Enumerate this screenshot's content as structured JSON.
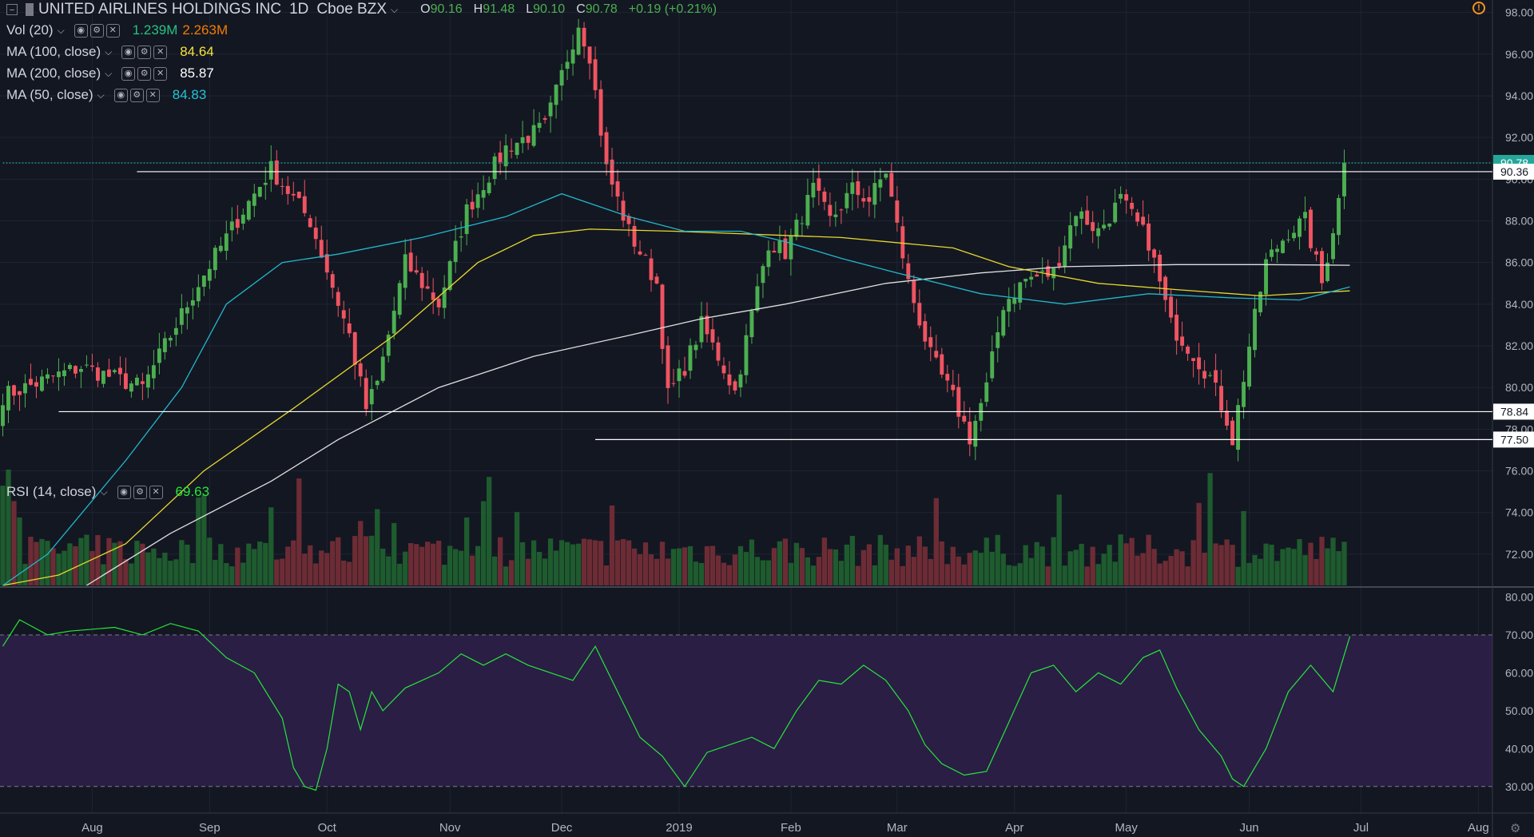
{
  "header": {
    "symbol": "UNITED AIRLINES HOLDINGS INC",
    "interval": "1D",
    "exchange": "Cboe BZX",
    "open_label": "O",
    "open": "90.16",
    "high_label": "H",
    "high": "91.48",
    "low_label": "L",
    "low": "90.10",
    "close_label": "C",
    "close": "90.78",
    "change": "+0.19 (+0.21%)"
  },
  "indicators": [
    {
      "label": "Vol (20)",
      "values": [
        "1.239M",
        "2.263M"
      ],
      "colors": [
        "#26c281",
        "#f57c00"
      ]
    },
    {
      "label": "MA (100, close)",
      "values": [
        "84.64"
      ],
      "colors": [
        "#f5e23c"
      ]
    },
    {
      "label": "MA (200, close)",
      "values": [
        "85.87"
      ],
      "colors": [
        "#ffffff"
      ]
    },
    {
      "label": "MA (50, close)",
      "values": [
        "84.83"
      ],
      "colors": [
        "#22c4d6"
      ]
    }
  ],
  "rsi": {
    "label": "RSI (14, close)",
    "value": "69.63",
    "color": "#26e63a"
  },
  "price_axis": {
    "ticks": [
      "98.00",
      "96.00",
      "94.00",
      "92.00",
      "90.00",
      "88.00",
      "86.00",
      "84.00",
      "82.00",
      "80.00",
      "78.00",
      "76.00",
      "74.00",
      "72.00"
    ],
    "tick_values": [
      98,
      96,
      94,
      92,
      90,
      88,
      86,
      84,
      82,
      80,
      78,
      76,
      74,
      72
    ],
    "badges": [
      {
        "text": "90.78",
        "value": 90.78,
        "bg": "#26a69a",
        "fg": "#ffffff"
      },
      {
        "text": "90.36",
        "value": 90.36,
        "bg": "#ffffff",
        "fg": "#131722"
      },
      {
        "text": "78.84",
        "value": 78.84,
        "bg": "#ffffff",
        "fg": "#131722"
      },
      {
        "text": "77.50",
        "value": 77.5,
        "bg": "#ffffff",
        "fg": "#131722"
      }
    ]
  },
  "rsi_axis": {
    "ticks": [
      "80.00",
      "70.00",
      "60.00",
      "50.00",
      "40.00",
      "30.00"
    ],
    "tick_values": [
      80,
      70,
      60,
      50,
      40,
      30
    ],
    "upper": 70,
    "lower": 30
  },
  "time_axis": {
    "labels": [
      "Aug",
      "Sep",
      "Oct",
      "Nov",
      "Dec",
      "2019",
      "Feb",
      "Mar",
      "Apr",
      "May",
      "Jun",
      "Jul",
      "Aug"
    ]
  },
  "chart_data": {
    "type": "candlestick",
    "price_range": [
      70.5,
      98.6
    ],
    "rsi_range": [
      23,
      82
    ],
    "n_bars": 241,
    "month_starts": [
      16,
      37,
      58,
      80,
      100,
      121,
      141,
      160,
      181,
      201,
      223,
      243,
      264
    ],
    "key_points": [
      [
        0,
        79.6
      ],
      [
        14,
        81
      ],
      [
        25,
        80
      ],
      [
        35,
        85
      ],
      [
        43,
        88.5
      ],
      [
        48,
        90.5
      ],
      [
        55,
        88
      ],
      [
        62,
        82.5
      ],
      [
        65,
        79
      ],
      [
        67,
        80.2
      ],
      [
        72,
        86
      ],
      [
        78,
        84
      ],
      [
        83,
        88.5
      ],
      [
        90,
        91.5
      ],
      [
        97,
        92.5
      ],
      [
        100,
        95
      ],
      [
        103,
        97.5
      ],
      [
        105,
        96
      ],
      [
        108,
        90.5
      ],
      [
        112,
        87.5
      ],
      [
        117,
        85
      ],
      [
        119,
        79.6
      ],
      [
        122,
        81
      ],
      [
        125,
        83
      ],
      [
        128,
        81.5
      ],
      [
        131,
        79.8
      ],
      [
        134,
        83.5
      ],
      [
        137,
        87
      ],
      [
        140,
        86.5
      ],
      [
        145,
        89.5
      ],
      [
        148,
        88
      ],
      [
        152,
        89.5
      ],
      [
        155,
        89
      ],
      [
        158,
        90.4
      ],
      [
        162,
        85
      ],
      [
        166,
        81.5
      ],
      [
        170,
        79.5
      ],
      [
        173,
        77.6
      ],
      [
        176,
        80
      ],
      [
        179,
        84
      ],
      [
        183,
        85.2
      ],
      [
        188,
        85.5
      ],
      [
        192,
        88.5
      ],
      [
        196,
        87.5
      ],
      [
        200,
        89
      ],
      [
        205,
        87
      ],
      [
        209,
        83
      ],
      [
        212,
        82
      ],
      [
        216,
        80.5
      ],
      [
        219,
        78.5
      ],
      [
        220,
        77.5
      ],
      [
        223,
        82
      ],
      [
        226,
        86
      ],
      [
        230,
        87.5
      ],
      [
        233,
        88
      ],
      [
        236,
        85
      ],
      [
        239,
        89
      ],
      [
        241,
        90.8
      ]
    ],
    "ma100": [
      [
        0,
        70.5
      ],
      [
        10,
        71
      ],
      [
        22,
        72.5
      ],
      [
        36,
        76
      ],
      [
        52,
        79
      ],
      [
        70,
        82.5
      ],
      [
        85,
        86
      ],
      [
        95,
        87.3
      ],
      [
        105,
        87.6
      ],
      [
        120,
        87.5
      ],
      [
        140,
        87.3
      ],
      [
        150,
        87.2
      ],
      [
        162,
        86.9
      ],
      [
        170,
        86.7
      ],
      [
        180,
        85.8
      ],
      [
        196,
        85
      ],
      [
        210,
        84.7
      ],
      [
        225,
        84.4
      ],
      [
        238,
        84.6
      ],
      [
        241,
        84.64
      ]
    ],
    "ma200": [
      [
        15,
        70.5
      ],
      [
        30,
        73
      ],
      [
        48,
        75.5
      ],
      [
        60,
        77.5
      ],
      [
        78,
        80
      ],
      [
        95,
        81.5
      ],
      [
        112,
        82.5
      ],
      [
        125,
        83.3
      ],
      [
        140,
        84
      ],
      [
        158,
        85
      ],
      [
        175,
        85.5
      ],
      [
        190,
        85.8
      ],
      [
        210,
        85.9
      ],
      [
        225,
        85.9
      ],
      [
        241,
        85.87
      ]
    ],
    "ma50": [
      [
        0,
        70.5
      ],
      [
        8,
        72
      ],
      [
        22,
        76.5
      ],
      [
        32,
        80
      ],
      [
        40,
        84
      ],
      [
        50,
        86
      ],
      [
        60,
        86.4
      ],
      [
        75,
        87.2
      ],
      [
        90,
        88.2
      ],
      [
        100,
        89.3
      ],
      [
        112,
        88.2
      ],
      [
        122,
        87.5
      ],
      [
        132,
        87.5
      ],
      [
        140,
        87
      ],
      [
        150,
        86.2
      ],
      [
        160,
        85.5
      ],
      [
        175,
        84.5
      ],
      [
        190,
        84
      ],
      [
        205,
        84.5
      ],
      [
        220,
        84.3
      ],
      [
        232,
        84.2
      ],
      [
        241,
        84.83
      ]
    ],
    "h_lines": [
      {
        "value": 90.36,
        "x_from": 24,
        "color": "#ffffff"
      },
      {
        "value": 90.78,
        "x_from": 0,
        "color": "#26a69a",
        "dotted": true
      },
      {
        "value": 78.84,
        "x_from": 10,
        "color": "#ffffff"
      },
      {
        "value": 77.5,
        "x_from": 106,
        "color": "#ffffff"
      }
    ],
    "rsi_points": [
      [
        0,
        67
      ],
      [
        3,
        74
      ],
      [
        8,
        70
      ],
      [
        12,
        71
      ],
      [
        20,
        72
      ],
      [
        25,
        70
      ],
      [
        30,
        73
      ],
      [
        35,
        71
      ],
      [
        40,
        64
      ],
      [
        45,
        60
      ],
      [
        50,
        48
      ],
      [
        52,
        35
      ],
      [
        54,
        30
      ],
      [
        56,
        29
      ],
      [
        58,
        40
      ],
      [
        60,
        57
      ],
      [
        62,
        55
      ],
      [
        64,
        45
      ],
      [
        66,
        55
      ],
      [
        68,
        50
      ],
      [
        72,
        56
      ],
      [
        78,
        60
      ],
      [
        82,
        65
      ],
      [
        86,
        62
      ],
      [
        90,
        65
      ],
      [
        94,
        62
      ],
      [
        98,
        60
      ],
      [
        102,
        58
      ],
      [
        106,
        67
      ],
      [
        110,
        55
      ],
      [
        114,
        43
      ],
      [
        118,
        38
      ],
      [
        122,
        30
      ],
      [
        126,
        39
      ],
      [
        130,
        41
      ],
      [
        134,
        43
      ],
      [
        138,
        40
      ],
      [
        142,
        50
      ],
      [
        146,
        58
      ],
      [
        150,
        57
      ],
      [
        154,
        62
      ],
      [
        158,
        58
      ],
      [
        162,
        50
      ],
      [
        165,
        41
      ],
      [
        168,
        36
      ],
      [
        172,
        33
      ],
      [
        176,
        34
      ],
      [
        180,
        47
      ],
      [
        184,
        60
      ],
      [
        188,
        62
      ],
      [
        192,
        55
      ],
      [
        196,
        60
      ],
      [
        200,
        57
      ],
      [
        204,
        64
      ],
      [
        207,
        66
      ],
      [
        210,
        56
      ],
      [
        214,
        45
      ],
      [
        218,
        38
      ],
      [
        220,
        32
      ],
      [
        222,
        30
      ],
      [
        226,
        40
      ],
      [
        230,
        55
      ],
      [
        234,
        62
      ],
      [
        238,
        55
      ],
      [
        241,
        69.6
      ]
    ],
    "volume_range": [
      0,
      5.5
    ]
  },
  "theme": {
    "bg": "#131722",
    "up": "#4caf50",
    "down": "#f05461",
    "vol_up": "#1e5b2e",
    "vol_down": "#6d2c35",
    "grid": "#1f2433",
    "rsi_band": "#2a1e45",
    "text": "#d1d4dc"
  }
}
